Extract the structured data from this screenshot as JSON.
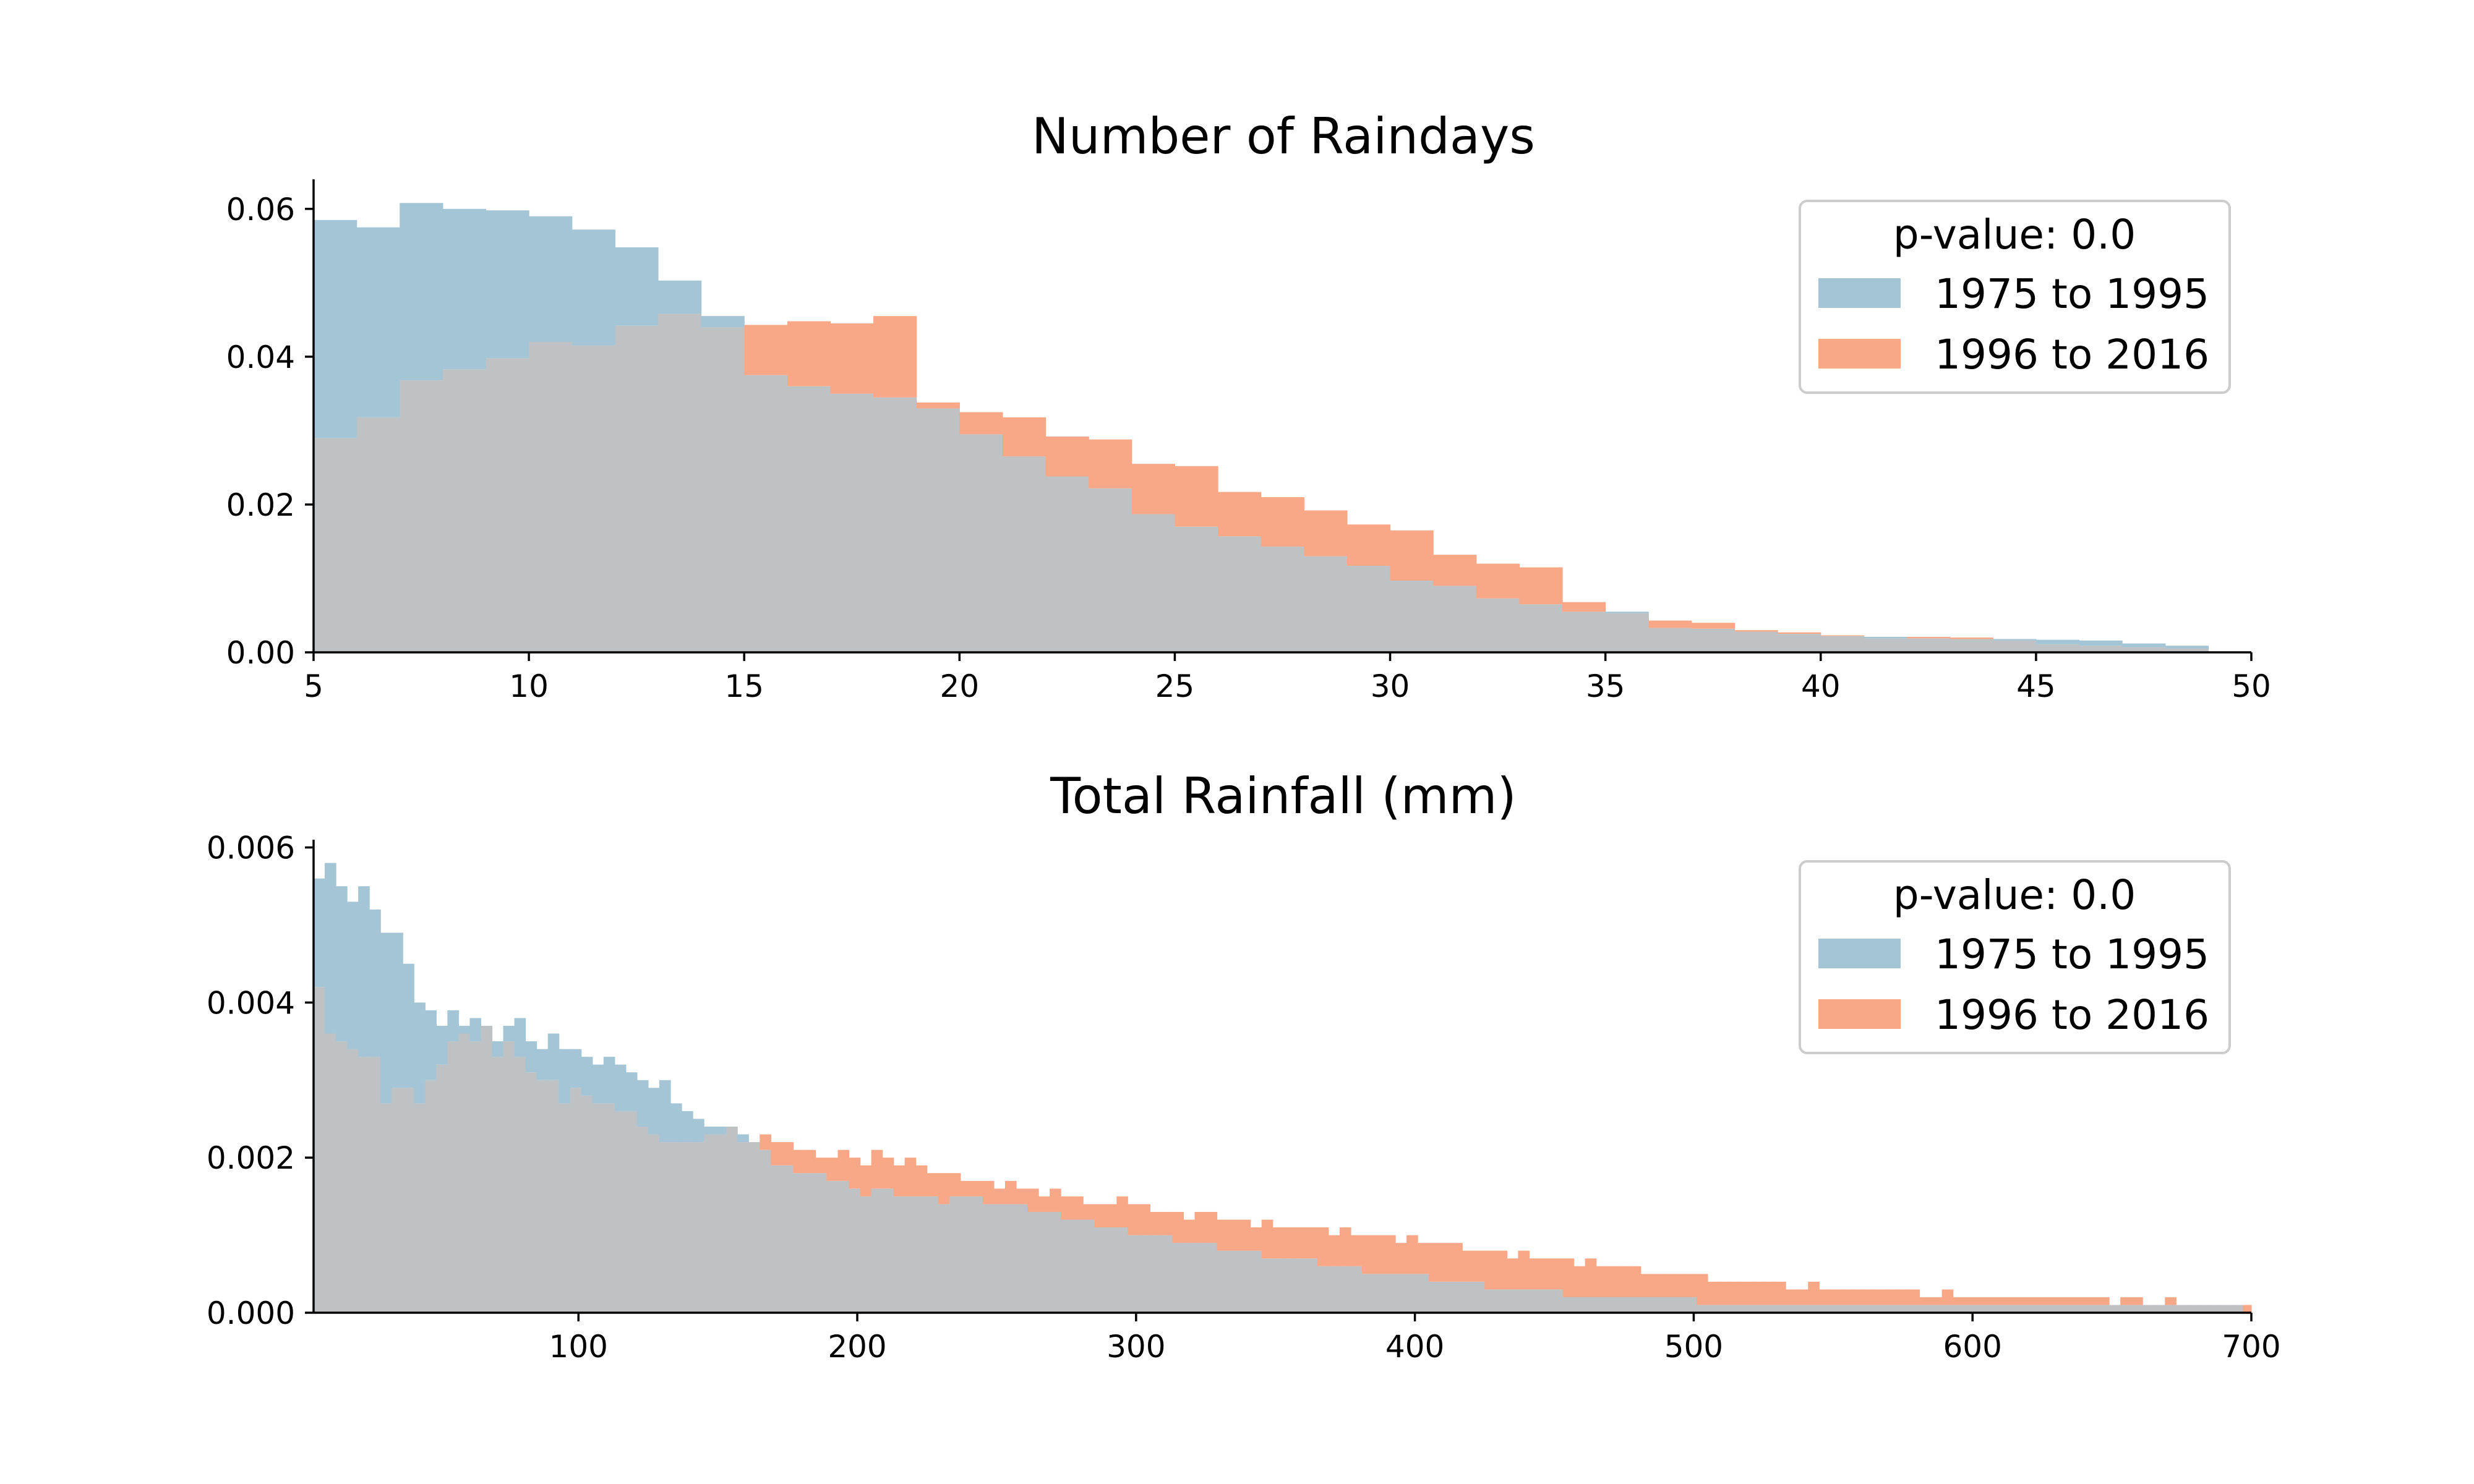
{
  "colors": {
    "series_a": "#a3c5d5",
    "series_b": "#f8a886",
    "overlap": "#bec2c5"
  },
  "chart_data": [
    {
      "type": "histogram",
      "title": "Number of Raindays",
      "xlim": [
        5,
        50
      ],
      "ylim": [
        0,
        0.064
      ],
      "xticks": [
        5,
        10,
        15,
        20,
        25,
        30,
        35,
        40,
        45,
        50
      ],
      "xtick_labels": [
        "5",
        "10",
        "15",
        "20",
        "25",
        "30",
        "35",
        "40",
        "45",
        "50"
      ],
      "yticks": [
        0,
        0.02,
        0.04,
        0.06
      ],
      "ytick_labels": [
        "0.00",
        "0.02",
        "0.04",
        "0.06"
      ],
      "grid": false,
      "legend": {
        "title": "p-value: 0.0",
        "placement": "upper right"
      },
      "bin_start": 5,
      "bin_width": 1,
      "series": [
        {
          "name": "1975 to 1995",
          "color_key": "series_a",
          "values": [
            0.0585,
            0.0575,
            0.0608,
            0.06,
            0.0598,
            0.059,
            0.0572,
            0.0548,
            0.0503,
            0.0455,
            0.0375,
            0.036,
            0.035,
            0.0345,
            0.033,
            0.0295,
            0.0265,
            0.0238,
            0.0222,
            0.0187,
            0.017,
            0.0157,
            0.0143,
            0.013,
            0.0117,
            0.0097,
            0.009,
            0.0073,
            0.0065,
            0.0055,
            0.0055,
            0.0033,
            0.0032,
            0.0028,
            0.0025,
            0.0022,
            0.0021,
            0.0019,
            0.0018,
            0.0018,
            0.0017,
            0.0016,
            0.0012,
            0.0009
          ]
        },
        {
          "name": "1996 to 2016",
          "color_key": "series_b",
          "values": [
            0.029,
            0.0318,
            0.0368,
            0.0383,
            0.0398,
            0.042,
            0.0415,
            0.0442,
            0.0458,
            0.044,
            0.0443,
            0.0448,
            0.0445,
            0.0455,
            0.0338,
            0.0325,
            0.0318,
            0.0292,
            0.0288,
            0.0255,
            0.0252,
            0.0217,
            0.021,
            0.0192,
            0.0173,
            0.0165,
            0.0132,
            0.012,
            0.0115,
            0.0068,
            0.0053,
            0.0043,
            0.004,
            0.003,
            0.0027,
            0.0023,
            0.0019,
            0.0021,
            0.002,
            0.0016,
            0.0011,
            0.0009,
            0.0007,
            0.0005
          ]
        }
      ]
    },
    {
      "type": "histogram",
      "title": "Total Rainfall (mm)",
      "xlim": [
        5,
        700
      ],
      "ylim": [
        0,
        0.0061
      ],
      "xticks": [
        100,
        200,
        300,
        400,
        500,
        600,
        700
      ],
      "xtick_labels": [
        "100",
        "200",
        "300",
        "400",
        "500",
        "600",
        "700"
      ],
      "yticks": [
        0,
        0.002,
        0.004,
        0.006
      ],
      "ytick_labels": [
        "0.000",
        "0.002",
        "0.004",
        "0.006"
      ],
      "grid": false,
      "legend": {
        "title": "p-value: 0.0",
        "placement": "upper right"
      },
      "bin_start": 5,
      "bin_width": 4,
      "series": [
        {
          "name": "1975 to 1995",
          "color_key": "series_a",
          "values": [
            0.0056,
            0.0058,
            0.0055,
            0.0053,
            0.0055,
            0.0052,
            0.0049,
            0.0049,
            0.0045,
            0.004,
            0.0039,
            0.0037,
            0.0039,
            0.0037,
            0.0038,
            0.0037,
            0.0035,
            0.0037,
            0.0038,
            0.0035,
            0.0034,
            0.0036,
            0.0034,
            0.0034,
            0.0033,
            0.0032,
            0.0033,
            0.0032,
            0.0031,
            0.003,
            0.0029,
            0.003,
            0.0027,
            0.0026,
            0.0025,
            0.0024,
            0.0024,
            0.0024,
            0.0023,
            0.0022,
            0.0021,
            0.0019,
            0.0019,
            0.0018,
            0.0018,
            0.0018,
            0.0017,
            0.0017,
            0.0016,
            0.0015,
            0.0016,
            0.0016,
            0.0015,
            0.0015,
            0.0015,
            0.0015,
            0.0014,
            0.0015,
            0.0015,
            0.0015,
            0.0014,
            0.0014,
            0.0014,
            0.0014,
            0.0013,
            0.0013,
            0.0013,
            0.0012,
            0.0012,
            0.0012,
            0.0011,
            0.0011,
            0.0011,
            0.001,
            0.001,
            0.001,
            0.001,
            0.0009,
            0.0009,
            0.0009,
            0.0009,
            0.0008,
            0.0008,
            0.0008,
            0.0008,
            0.0007,
            0.0007,
            0.0007,
            0.0007,
            0.0007,
            0.0006,
            0.0006,
            0.0006,
            0.0006,
            0.0005,
            0.0005,
            0.0005,
            0.0005,
            0.0005,
            0.0005,
            0.0004,
            0.0004,
            0.0004,
            0.0004,
            0.0004,
            0.0003,
            0.0003,
            0.0003,
            0.0003,
            0.0003,
            0.0003,
            0.0003,
            0.0002,
            0.0002,
            0.0002,
            0.0002,
            0.0002,
            0.0002,
            0.0002,
            0.0002,
            0.0002,
            0.0002,
            0.0002,
            0.0002,
            0.0001,
            0.0001,
            0.0001,
            0.0001,
            0.0001,
            0.0001,
            0.0001,
            0.0001,
            0.0001,
            0.0001,
            0.0001,
            0.0001,
            0.0001,
            0.0001,
            0.0001,
            0.0001,
            0.0001,
            0.0001,
            0.0001,
            0.0001,
            0.0001,
            0.0001,
            0.0001,
            0.0001,
            0.0001,
            0.0001,
            0.0001,
            0.0001,
            0.0001,
            0.0001,
            0.0001,
            0.0001,
            0.0001,
            0.0001,
            0.0001,
            0.0001,
            0.0001,
            0.0001,
            0.0001,
            0.0001,
            0.0001,
            0.0001,
            0.0001,
            0.0001,
            0.0001,
            0.0001,
            0.0001,
            0.0001,
            0.0001
          ]
        },
        {
          "name": "1996 to 2016",
          "color_key": "series_b",
          "values": [
            0.0042,
            0.0036,
            0.0035,
            0.0034,
            0.0033,
            0.0033,
            0.0027,
            0.0029,
            0.0029,
            0.0027,
            0.003,
            0.0032,
            0.0035,
            0.0036,
            0.0035,
            0.0037,
            0.0033,
            0.0035,
            0.0033,
            0.0031,
            0.003,
            0.003,
            0.0027,
            0.0029,
            0.0028,
            0.0027,
            0.0027,
            0.0026,
            0.0026,
            0.0024,
            0.0023,
            0.0022,
            0.0022,
            0.0022,
            0.0022,
            0.0023,
            0.0023,
            0.0024,
            0.0022,
            0.0022,
            0.0023,
            0.0022,
            0.0022,
            0.0021,
            0.0021,
            0.002,
            0.002,
            0.0021,
            0.002,
            0.0019,
            0.0021,
            0.002,
            0.0019,
            0.002,
            0.0019,
            0.0018,
            0.0018,
            0.0018,
            0.0017,
            0.0017,
            0.0017,
            0.0016,
            0.0017,
            0.0016,
            0.0016,
            0.0015,
            0.0016,
            0.0015,
            0.0015,
            0.0014,
            0.0014,
            0.0014,
            0.0015,
            0.0014,
            0.0014,
            0.0013,
            0.0013,
            0.0013,
            0.0012,
            0.0013,
            0.0013,
            0.0012,
            0.0012,
            0.0012,
            0.0011,
            0.0012,
            0.0011,
            0.0011,
            0.0011,
            0.0011,
            0.0011,
            0.001,
            0.0011,
            0.001,
            0.001,
            0.001,
            0.001,
            0.0009,
            0.001,
            0.0009,
            0.0009,
            0.0009,
            0.0009,
            0.0008,
            0.0008,
            0.0008,
            0.0008,
            0.0007,
            0.0008,
            0.0007,
            0.0007,
            0.0007,
            0.0007,
            0.0006,
            0.0007,
            0.0006,
            0.0006,
            0.0006,
            0.0006,
            0.0005,
            0.0005,
            0.0005,
            0.0005,
            0.0005,
            0.0005,
            0.0004,
            0.0004,
            0.0004,
            0.0004,
            0.0004,
            0.0004,
            0.0004,
            0.0003,
            0.0003,
            0.0004,
            0.0003,
            0.0003,
            0.0003,
            0.0003,
            0.0003,
            0.0003,
            0.0003,
            0.0003,
            0.0003,
            0.0002,
            0.0002,
            0.0003,
            0.0002,
            0.0002,
            0.0002,
            0.0002,
            0.0002,
            0.0002,
            0.0002,
            0.0002,
            0.0002,
            0.0002,
            0.0002,
            0.0002,
            0.0002,
            0.0002,
            0.0001,
            0.0002,
            0.0002,
            0.0001,
            0.0001,
            0.0002,
            0.0001,
            0.0001,
            0.0001,
            0.0001,
            0.0001,
            0.0001,
            0.0001,
            0.0001,
            0.0001
          ]
        }
      ]
    }
  ]
}
